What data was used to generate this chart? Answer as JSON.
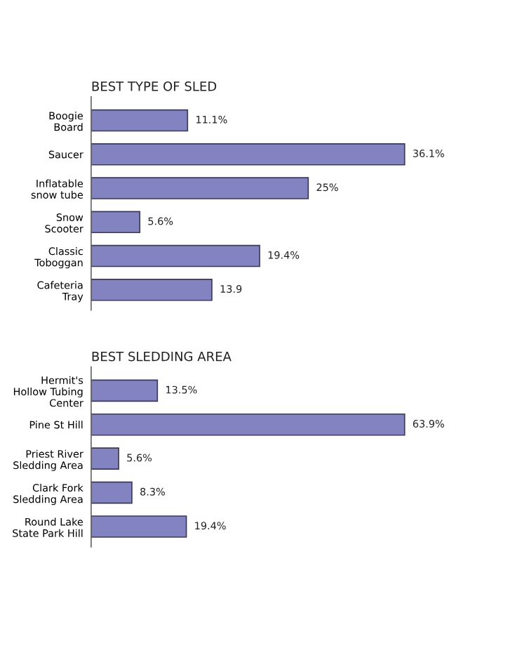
{
  "chart_data": [
    {
      "type": "bar",
      "orientation": "horizontal",
      "title": "BEST TYPE OF SLED",
      "categories": [
        "Boogie\nBoard",
        "Saucer",
        "Inflatable\nsnow tube",
        "Snow\nScooter",
        "Classic\nToboggan",
        "Cafeteria\nTray"
      ],
      "values": [
        11.1,
        36.1,
        25,
        5.6,
        19.4,
        13.9
      ],
      "value_labels": [
        "11.1%",
        "36.1%",
        "25%",
        "5.6%",
        "19.4%",
        "13.9"
      ],
      "color": "#8383c1",
      "grid": false,
      "legend": false
    },
    {
      "type": "bar",
      "orientation": "horizontal",
      "title": "BEST SLEDDING AREA",
      "categories": [
        "Hermit's\nHollow Tubing\nCenter",
        "Pine St Hill",
        "Priest River\nSledding Area",
        "Clark Fork\nSledding Area",
        "Round Lake\nState Park Hill"
      ],
      "values": [
        13.5,
        63.9,
        5.6,
        8.3,
        19.4
      ],
      "value_labels": [
        "13.5%",
        "63.9%",
        "5.6%",
        "8.3%",
        "19.4%"
      ],
      "color": "#8383c1",
      "grid": false,
      "legend": false
    }
  ]
}
